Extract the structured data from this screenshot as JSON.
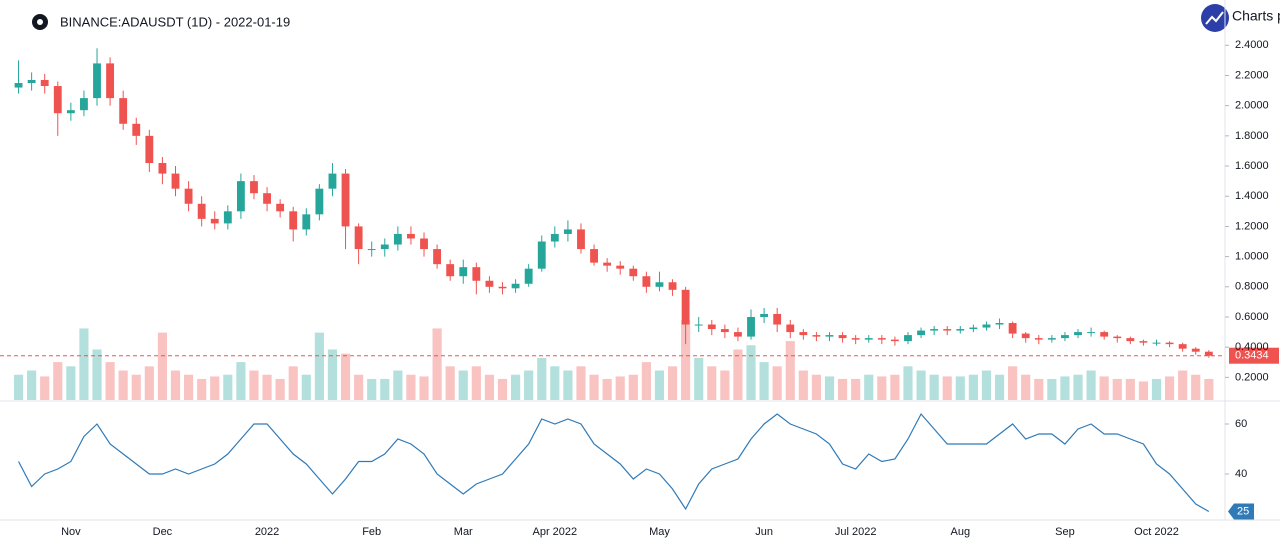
{
  "header": {
    "symbol": "BINANCE:ADAUSDT (1D) - 2022-01-19",
    "brand": "Charts p"
  },
  "chart_data": [
    {
      "type": "candlestick",
      "categories": [
        null,
        null,
        null,
        null,
        "Nov",
        null,
        null,
        null,
        null,
        null,
        null,
        "Dec",
        null,
        null,
        null,
        null,
        null,
        null,
        null,
        "2022",
        null,
        null,
        null,
        null,
        null,
        null,
        null,
        "Feb",
        null,
        null,
        null,
        null,
        null,
        null,
        "Mar",
        null,
        null,
        null,
        null,
        null,
        null,
        "Apr 2022",
        null,
        null,
        null,
        null,
        null,
        null,
        null,
        "May",
        null,
        null,
        null,
        null,
        null,
        null,
        null,
        "Jun",
        null,
        null,
        null,
        null,
        null,
        null,
        "Jul 2022",
        null,
        null,
        null,
        null,
        null,
        null,
        null,
        "Aug",
        null,
        null,
        null,
        null,
        null,
        null,
        null,
        "Sep",
        null,
        null,
        null,
        null,
        null,
        null,
        "Oct 2022",
        null,
        null,
        null,
        null
      ],
      "open": [
        2.12,
        2.15,
        2.17,
        2.13,
        1.95,
        1.97,
        2.05,
        2.28,
        2.05,
        1.88,
        1.8,
        1.62,
        1.55,
        1.45,
        1.35,
        1.25,
        1.22,
        1.3,
        1.5,
        1.42,
        1.35,
        1.3,
        1.18,
        1.28,
        1.45,
        1.55,
        1.2,
        1.05,
        1.05,
        1.08,
        1.15,
        1.12,
        1.05,
        0.95,
        0.87,
        0.93,
        0.84,
        0.8,
        0.79,
        0.82,
        0.92,
        1.1,
        1.15,
        1.18,
        1.05,
        0.96,
        0.94,
        0.92,
        0.87,
        0.8,
        0.83,
        0.78,
        0.55,
        0.55,
        0.52,
        0.5,
        0.47,
        0.6,
        0.62,
        0.55,
        0.5,
        0.48,
        0.47,
        0.48,
        0.46,
        0.45,
        0.46,
        0.45,
        0.44,
        0.48,
        0.51,
        0.52,
        0.51,
        0.52,
        0.53,
        0.55,
        0.56,
        0.49,
        0.46,
        0.45,
        0.46,
        0.48,
        0.5,
        0.5,
        0.47,
        0.46,
        0.44,
        0.43,
        0.43,
        0.42,
        0.39,
        0.37
      ],
      "high": [
        2.3,
        2.22,
        2.21,
        2.16,
        2.02,
        2.1,
        2.38,
        2.32,
        2.1,
        1.92,
        1.84,
        1.66,
        1.6,
        1.5,
        1.4,
        1.3,
        1.34,
        1.55,
        1.54,
        1.46,
        1.38,
        1.33,
        1.32,
        1.48,
        1.62,
        1.58,
        1.22,
        1.1,
        1.12,
        1.2,
        1.2,
        1.16,
        1.08,
        0.98,
        0.98,
        0.96,
        0.87,
        0.83,
        0.85,
        0.95,
        1.14,
        1.2,
        1.24,
        1.22,
        1.08,
        0.99,
        0.97,
        0.94,
        0.9,
        0.9,
        0.85,
        0.8,
        0.6,
        0.58,
        0.55,
        0.53,
        0.65,
        0.66,
        0.66,
        0.58,
        0.52,
        0.5,
        0.5,
        0.5,
        0.48,
        0.48,
        0.48,
        0.47,
        0.5,
        0.53,
        0.54,
        0.54,
        0.54,
        0.55,
        0.57,
        0.59,
        0.57,
        0.5,
        0.48,
        0.48,
        0.5,
        0.52,
        0.53,
        0.51,
        0.48,
        0.47,
        0.45,
        0.45,
        0.44,
        0.43,
        0.4,
        0.38
      ],
      "low": [
        2.08,
        2.1,
        2.08,
        1.8,
        1.9,
        1.93,
        2.0,
        2.0,
        1.84,
        1.74,
        1.56,
        1.48,
        1.4,
        1.3,
        1.2,
        1.18,
        1.18,
        1.25,
        1.38,
        1.3,
        1.26,
        1.1,
        1.14,
        1.24,
        1.4,
        1.05,
        0.95,
        1.0,
        1.0,
        1.04,
        1.08,
        1.0,
        0.92,
        0.84,
        0.82,
        0.75,
        0.76,
        0.75,
        0.76,
        0.8,
        0.9,
        1.06,
        1.1,
        1.02,
        0.94,
        0.9,
        0.88,
        0.84,
        0.76,
        0.77,
        0.74,
        0.42,
        0.5,
        0.48,
        0.46,
        0.44,
        0.45,
        0.56,
        0.5,
        0.46,
        0.45,
        0.44,
        0.44,
        0.43,
        0.42,
        0.43,
        0.42,
        0.41,
        0.42,
        0.46,
        0.48,
        0.48,
        0.49,
        0.5,
        0.51,
        0.52,
        0.46,
        0.43,
        0.42,
        0.43,
        0.44,
        0.46,
        0.47,
        0.45,
        0.43,
        0.42,
        0.41,
        0.41,
        0.4,
        0.37,
        0.35,
        0.33
      ],
      "close": [
        2.15,
        2.17,
        2.13,
        1.95,
        1.97,
        2.05,
        2.28,
        2.05,
        1.88,
        1.8,
        1.62,
        1.55,
        1.45,
        1.35,
        1.25,
        1.22,
        1.3,
        1.5,
        1.42,
        1.35,
        1.3,
        1.18,
        1.28,
        1.45,
        1.55,
        1.2,
        1.05,
        1.05,
        1.08,
        1.15,
        1.12,
        1.05,
        0.95,
        0.87,
        0.93,
        0.84,
        0.8,
        0.79,
        0.82,
        0.92,
        1.1,
        1.15,
        1.18,
        1.05,
        0.96,
        0.94,
        0.92,
        0.87,
        0.8,
        0.83,
        0.78,
        0.55,
        0.55,
        0.52,
        0.5,
        0.47,
        0.6,
        0.62,
        0.55,
        0.5,
        0.48,
        0.47,
        0.48,
        0.46,
        0.45,
        0.46,
        0.45,
        0.44,
        0.48,
        0.51,
        0.52,
        0.51,
        0.52,
        0.53,
        0.55,
        0.56,
        0.49,
        0.46,
        0.45,
        0.46,
        0.48,
        0.5,
        0.5,
        0.47,
        0.46,
        0.44,
        0.43,
        0.43,
        0.42,
        0.39,
        0.37,
        0.3434
      ],
      "volume": [
        30,
        35,
        28,
        45,
        40,
        85,
        60,
        45,
        35,
        30,
        40,
        80,
        35,
        30,
        25,
        28,
        30,
        45,
        35,
        30,
        25,
        40,
        30,
        80,
        60,
        55,
        30,
        25,
        25,
        35,
        30,
        28,
        85,
        40,
        35,
        40,
        30,
        25,
        30,
        35,
        50,
        40,
        35,
        40,
        30,
        25,
        28,
        30,
        45,
        35,
        40,
        95,
        50,
        40,
        35,
        60,
        65,
        45,
        40,
        70,
        35,
        30,
        28,
        25,
        25,
        30,
        28,
        30,
        40,
        35,
        30,
        28,
        28,
        30,
        35,
        30,
        40,
        30,
        25,
        25,
        28,
        30,
        35,
        28,
        25,
        25,
        22,
        25,
        28,
        35,
        30,
        25
      ],
      "colors": {
        "up": "#26a69a",
        "down": "#ef5350"
      },
      "ylim": [
        0.05,
        2.7
      ],
      "yticks": [
        {
          "value": 0.2,
          "label": "0.2000"
        },
        {
          "value": 0.4,
          "label": "0.4000"
        },
        {
          "value": 0.6,
          "label": "0.6000"
        },
        {
          "value": 0.8,
          "label": "0.8000"
        },
        {
          "value": 1.0,
          "label": "1.0000"
        },
        {
          "value": 1.2,
          "label": "1.2000"
        },
        {
          "value": 1.4,
          "label": "1.4000"
        },
        {
          "value": 1.6,
          "label": "1.6000"
        },
        {
          "value": 1.8,
          "label": "1.8000"
        },
        {
          "value": 2.0,
          "label": "2.0000"
        },
        {
          "value": 2.2,
          "label": "2.2000"
        },
        {
          "value": 2.4,
          "label": "2.4000"
        }
      ],
      "last_price_line": true,
      "grid": false
    },
    {
      "type": "line",
      "values": [
        45,
        35,
        40,
        42,
        45,
        55,
        60,
        52,
        48,
        44,
        40,
        40,
        42,
        40,
        42,
        44,
        48,
        54,
        60,
        60,
        54,
        48,
        44,
        38,
        32,
        38,
        45,
        45,
        48,
        54,
        52,
        48,
        40,
        36,
        32,
        36,
        38,
        40,
        46,
        52,
        62,
        60,
        62,
        60,
        52,
        48,
        44,
        38,
        42,
        40,
        34,
        26,
        36,
        42,
        44,
        46,
        54,
        60,
        64,
        60,
        58,
        56,
        52,
        44,
        42,
        48,
        45,
        46,
        54,
        64,
        58,
        52,
        52,
        52,
        52,
        56,
        60,
        54,
        56,
        56,
        52,
        58,
        60,
        56,
        56,
        54,
        52,
        44,
        40,
        34,
        28,
        25
      ],
      "color": "#2f7ab7",
      "ylim": [
        21.6,
        68.8
      ],
      "yticks": [
        40,
        60
      ],
      "grid": false
    }
  ]
}
